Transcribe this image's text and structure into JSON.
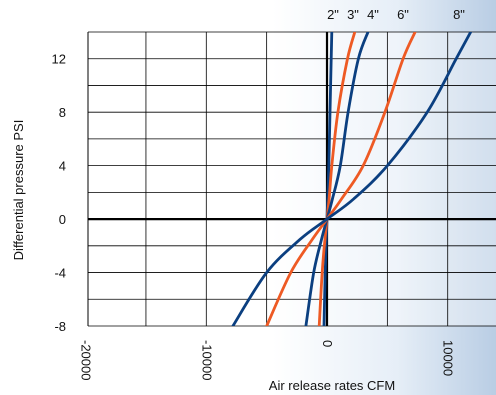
{
  "chart_data": {
    "type": "line",
    "xlabel": "Air release rates CFM",
    "ylabel": "Differential pressure PSI",
    "xlim": [
      -20000,
      14000
    ],
    "ylim": [
      -8,
      14
    ],
    "x_ticks": [
      -20000,
      -10000,
      0,
      10000
    ],
    "x_tick_labels": [
      "-20000",
      "-10000",
      "0",
      "10000"
    ],
    "y_ticks": [
      -8,
      -4,
      0,
      4,
      8,
      12
    ],
    "y_tick_labels": [
      "-8",
      "-4",
      "0",
      "4",
      "8",
      "12"
    ],
    "grid": true,
    "colors": {
      "dark": "#0b3f80",
      "accent": "#ee5a24",
      "axis": "#000000"
    },
    "series": [
      {
        "name": "2\"",
        "color": "#0b3f80",
        "points": [
          [
            -250,
            -8
          ],
          [
            -150,
            -4
          ],
          [
            -60,
            -1.5
          ],
          [
            0,
            0
          ],
          [
            60,
            1.5
          ],
          [
            150,
            4
          ],
          [
            250,
            8
          ],
          [
            350,
            12
          ],
          [
            400,
            14
          ]
        ]
      },
      {
        "name": "3\"",
        "color": "#ee5a24",
        "points": [
          [
            -650,
            -8
          ],
          [
            -400,
            -4
          ],
          [
            -170,
            -1.5
          ],
          [
            0,
            0
          ],
          [
            170,
            1.5
          ],
          [
            400,
            4
          ],
          [
            900,
            8
          ],
          [
            1700,
            12
          ],
          [
            2300,
            14
          ]
        ]
      },
      {
        "name": "4\"",
        "color": "#0b3f80",
        "points": [
          [
            -1750,
            -8
          ],
          [
            -1100,
            -4
          ],
          [
            -450,
            -1.5
          ],
          [
            0,
            0
          ],
          [
            450,
            1.5
          ],
          [
            1100,
            4
          ],
          [
            1750,
            8
          ],
          [
            2600,
            12
          ],
          [
            3400,
            14
          ]
        ]
      },
      {
        "name": "6\"",
        "color": "#ee5a24",
        "points": [
          [
            -5000,
            -8
          ],
          [
            -3000,
            -4
          ],
          [
            -1200,
            -1.5
          ],
          [
            0,
            0
          ],
          [
            1200,
            1.5
          ],
          [
            3000,
            4
          ],
          [
            4800,
            8
          ],
          [
            6300,
            12
          ],
          [
            7300,
            14
          ]
        ]
      },
      {
        "name": "8\"",
        "color": "#0b3f80",
        "points": [
          [
            -7800,
            -8
          ],
          [
            -5000,
            -4
          ],
          [
            -2200,
            -1.5
          ],
          [
            0,
            0
          ],
          [
            2200,
            1.5
          ],
          [
            5000,
            4
          ],
          [
            8300,
            8
          ],
          [
            10700,
            12
          ],
          [
            11900,
            14
          ]
        ]
      }
    ],
    "legend": "curve labels above plot"
  }
}
